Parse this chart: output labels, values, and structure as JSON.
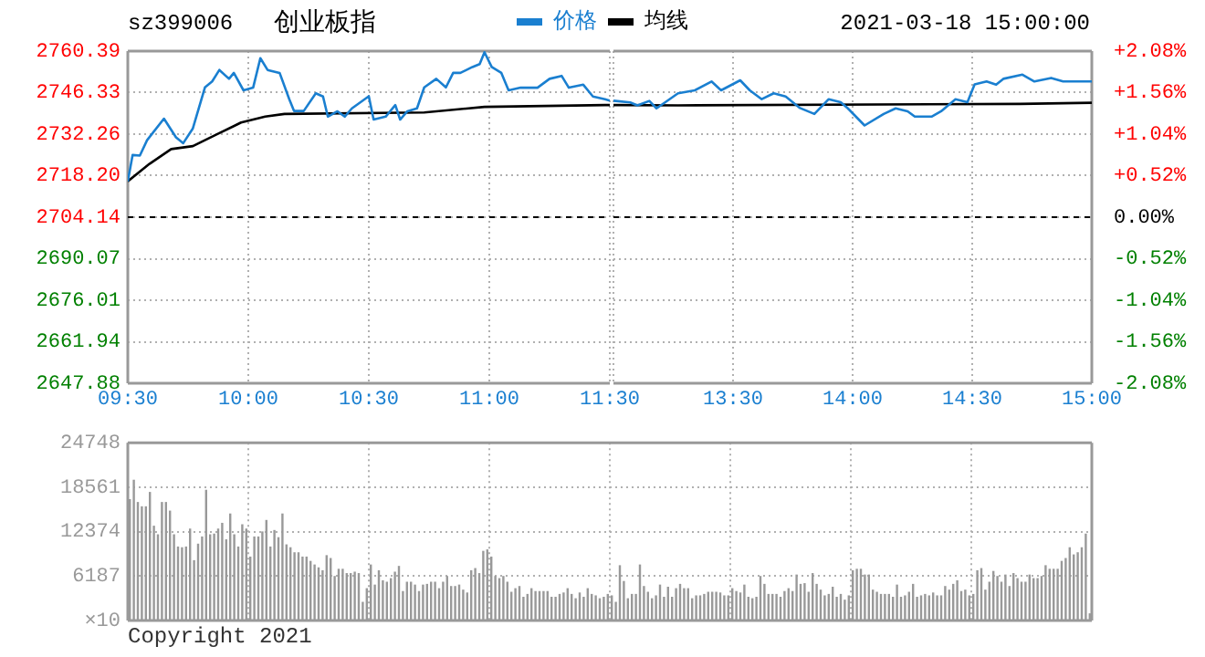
{
  "chart_data": [
    {
      "type": "line",
      "title": "创业板指",
      "subtitle": "sz399006",
      "annotations": [
        "2021-03-18 15:00:00"
      ],
      "xlim": [
        9.5,
        11.5
      ],
      "xticks": [
        {
          "value": 9.5,
          "label": "09:30"
        },
        {
          "value": 10,
          "label": "10:00"
        },
        {
          "value": 10.5,
          "label": "10:30"
        },
        {
          "value": 11,
          "label": "11:00"
        },
        {
          "value": 11.5,
          "label": "11:30"
        }
      ],
      "ylim": [
        2647.88,
        2760.39
      ],
      "yticks": [
        2647.88,
        2661.94,
        2676.01,
        2690.07,
        2704.14,
        {
          "value": 2718.2,
          "label": "2718.20"
        },
        2732.26,
        2746.33,
        2760.39
      ],
      "ref_lines": [
        {
          "axis": "y",
          "value": 2704.14,
          "line_style": "dashed",
          "color": "#000000"
        }
      ],
      "grid": true,
      "legend": "top",
      "series": [
        {
          "name": "价格",
          "color": "#1a7fd0",
          "x": [
            9.5,
            9.52,
            9.55,
            9.58,
            9.65,
            9.7,
            9.73,
            9.77,
            9.82,
            9.85,
            9.88,
            9.92,
            9.94,
            9.98,
            10.02,
            10.05,
            10.08,
            10.13,
            10.17,
            10.19,
            10.23,
            10.28,
            10.31,
            10.33,
            10.37,
            10.4,
            10.43,
            10.5,
            10.52,
            10.57,
            10.61,
            10.63,
            10.66,
            10.7,
            10.73,
            10.78,
            10.82,
            10.85,
            10.88,
            10.93,
            10.96,
            10.98,
            11.01,
            11.05,
            11.08,
            11.13,
            11.2,
            11.25,
            11.3,
            11.33,
            11.39,
            11.43,
            11.48,
            11.5
          ],
          "values": [
            2716.3,
            2725.2,
            2725,
            2730.2,
            2737.5,
            2731.2,
            2729.2,
            2734.2,
            2748.1,
            2750.1,
            2754,
            2751,
            2753,
            2747.1,
            2748,
            2758,
            2754,
            2753,
            2744.1,
            2740.1,
            2740.1,
            2746.1,
            2745,
            2738.2,
            2740,
            2738.2,
            2741,
            2745.1,
            2737.2,
            2738.2,
            2742.1,
            2737.2,
            2740,
            2741,
            2748.1,
            2751,
            2748.1,
            2753,
            2753,
            2755,
            2756,
            2760,
            2755,
            2753,
            2747.1,
            2748,
            2748,
            2751,
            2752,
            2748,
            2749,
            2745,
            2744.1,
            2743.6
          ]
        },
        {
          "name": "均线",
          "color": "#000000",
          "x": [
            9.5,
            9.59,
            9.68,
            9.77,
            9.87,
            9.97,
            10.07,
            10.15,
            10.73,
            10.98,
            11.48,
            11.5
          ],
          "values": [
            2716.3,
            2722.2,
            2727.2,
            2728.2,
            2732.2,
            2736.2,
            2738.2,
            2739.1,
            2739.6,
            2741.5,
            2742.1,
            2742.1
          ]
        }
      ]
    },
    {
      "type": "line",
      "xlim": [
        13,
        15
      ],
      "xticks": [
        {
          "value": 13,
          "label": null
        },
        {
          "value": 13.5,
          "label": "13:30"
        },
        {
          "value": 14,
          "label": "14:00"
        },
        {
          "value": 14.5,
          "label": "14:30"
        },
        {
          "value": 15,
          "label": "15:00"
        }
      ],
      "ylim": [
        2647.88,
        2760.39
      ],
      "tick_labels": "x",
      "y2lim": [
        -2.08,
        2.08
      ],
      "y2ticks": [
        {
          "value": -2.08,
          "label": "-2.08%"
        },
        {
          "value": -1.56,
          "label": "-1.56%"
        },
        {
          "value": -1.04,
          "label": "-1.04%"
        },
        {
          "value": -0.52,
          "label": "-0.52%"
        },
        {
          "value": 0,
          "label": "0.00%"
        },
        {
          "value": 0.52,
          "label": "+0.52%"
        },
        {
          "value": 1.04,
          "label": "+1.04%"
        },
        {
          "value": 1.56,
          "label": "+1.56%"
        },
        {
          "value": 2.08,
          "label": "+2.08%"
        }
      ],
      "ref_lines": [
        {
          "axis": "y",
          "value": 2704.14,
          "line_style": "dashed",
          "color": "#000000"
        }
      ],
      "grid": true,
      "series": [
        {
          "color": "#1a7fd0",
          "x": [
            13,
            13.07,
            13.1,
            13.15,
            13.18,
            13.27,
            13.34,
            13.41,
            13.45,
            13.53,
            13.57,
            13.62,
            13.67,
            13.72,
            13.78,
            13.84,
            13.9,
            13.95,
            13.98,
            14.05,
            14.13,
            14.18,
            14.23,
            14.26,
            14.33,
            14.37,
            14.43,
            14.48,
            14.51,
            14.56,
            14.6,
            14.63,
            14.71,
            14.76,
            14.83,
            14.88,
            15
          ],
          "values": [
            2743.6,
            2743,
            2742,
            2743.5,
            2741,
            2746.1,
            2747.1,
            2750.1,
            2747.1,
            2750.5,
            2747.1,
            2744.1,
            2746.1,
            2745,
            2741.1,
            2739.1,
            2744.1,
            2743.1,
            2741,
            2735.2,
            2739.1,
            2741,
            2740,
            2738.2,
            2738.2,
            2740,
            2744.1,
            2743.1,
            2749.1,
            2750.1,
            2749,
            2751,
            2752.4,
            2750.1,
            2751.3,
            2750.1,
            2750.1
          ]
        },
        {
          "color": "#000000",
          "x": [
            13,
            13.27,
            14.7,
            15
          ],
          "values": [
            2742.1,
            2742,
            2742.5,
            2742.9
          ]
        }
      ]
    },
    {
      "type": "bar",
      "color": "#999999",
      "ylim": [
        0,
        24748
      ],
      "yticks": [
        {
          "value": 0,
          "label": null
        },
        6187,
        12374,
        18561,
        24748
      ],
      "ylabel": "×10",
      "grid": true,
      "tick_labels": "y",
      "annotations": [
        "Copyright 2021"
      ],
      "categories": [
        null,
        null,
        null,
        null,
        null,
        null,
        null,
        null,
        null,
        null,
        null,
        null,
        null,
        null,
        null,
        null,
        null,
        null,
        null,
        null,
        null,
        null,
        null,
        null,
        null,
        null,
        null,
        null,
        null,
        null,
        null,
        null,
        null,
        null,
        null,
        null,
        null,
        null,
        null,
        null,
        null,
        null,
        null,
        null,
        null,
        null,
        null,
        null,
        null,
        null,
        null,
        null,
        null,
        null,
        null,
        null,
        null,
        null,
        null,
        null,
        null,
        null,
        null,
        null,
        null,
        null,
        null,
        null,
        null,
        null,
        null,
        null,
        null,
        null,
        null,
        null,
        null,
        null,
        null,
        null,
        null,
        null,
        null,
        null,
        null,
        null,
        null,
        null,
        null,
        null,
        null,
        null,
        null,
        null,
        null,
        null,
        null,
        null,
        null,
        null,
        null,
        null,
        null,
        null,
        null,
        null,
        null,
        null,
        null,
        null,
        null,
        null,
        null,
        null,
        null,
        null,
        null,
        null,
        null,
        null,
        null,
        null,
        null,
        null,
        null,
        null,
        null,
        null,
        null,
        null,
        null,
        null,
        null,
        null,
        null,
        null,
        null,
        null,
        null,
        null,
        null,
        null,
        null,
        null,
        null,
        null,
        null,
        null,
        null,
        null,
        null,
        null,
        null,
        null,
        null,
        null,
        null,
        null,
        null,
        null,
        null,
        null,
        null,
        null,
        null,
        null,
        null,
        null,
        null,
        null,
        null,
        null,
        null,
        null,
        null,
        null,
        null,
        null,
        null,
        null,
        null,
        null,
        null,
        null,
        null,
        null,
        null,
        null,
        null,
        null,
        null,
        null,
        null,
        null,
        null,
        null,
        null,
        null,
        null,
        null,
        null,
        null,
        null,
        null,
        null,
        null,
        null,
        null,
        null,
        null,
        null,
        null,
        null,
        null,
        null,
        null,
        null,
        null,
        null,
        null,
        null,
        null,
        null,
        null,
        null,
        null,
        null,
        null,
        null,
        null,
        null,
        null,
        null,
        null,
        null,
        null,
        null,
        null,
        null,
        null
      ],
      "values": [
        16900,
        19600,
        16500,
        15900,
        15900,
        17900,
        13200,
        12000,
        16500,
        16500,
        15300,
        12000,
        10300,
        10200,
        10300,
        12800,
        8400,
        10700,
        11700,
        18200,
        12000,
        12100,
        12800,
        13600,
        11300,
        14900,
        12000,
        10300,
        13400,
        12800,
        8900,
        11700,
        11700,
        12400,
        14000,
        10300,
        12600,
        11600,
        14900,
        10600,
        10200,
        9500,
        9500,
        8900,
        8900,
        8300,
        7800,
        7400,
        7000,
        9100,
        8700,
        6200,
        7200,
        7200,
        6600,
        6600,
        6800,
        6600,
        2600,
        4500,
        7800,
        5000,
        7000,
        5600,
        5400,
        5900,
        6800,
        7600,
        4100,
        5400,
        5400,
        5000,
        4100,
        5000,
        5100,
        5400,
        5400,
        4500,
        5400,
        6200,
        4800,
        4800,
        5000,
        4300,
        3900,
        7000,
        7300,
        6600,
        9700,
        9900,
        8900,
        6200,
        5900,
        6200,
        5400,
        4000,
        4500,
        4800,
        3300,
        3700,
        4500,
        4100,
        4100,
        4100,
        4100,
        3300,
        3300,
        3700,
        3900,
        4500,
        3700,
        3100,
        3900,
        3300,
        4500,
        3700,
        3500,
        3100,
        3300,
        3700,
        3500,
        2600,
        7700,
        5500,
        3100,
        3700,
        3700,
        7800,
        4800,
        4000,
        3100,
        3500,
        5000,
        3300,
        4700,
        3300,
        4500,
        5100,
        4500,
        4500,
        3100,
        3500,
        3500,
        3700,
        4000,
        4000,
        4000,
        3900,
        3500,
        3500,
        4500,
        4100,
        3900,
        5000,
        3300,
        3100,
        3300,
        6200,
        5100,
        3700,
        3700,
        3700,
        3300,
        4100,
        4500,
        4100,
        6400,
        5100,
        5200,
        4000,
        6600,
        5100,
        4300,
        3500,
        3700,
        4700,
        3300,
        3700,
        2900,
        3500,
        7000,
        7200,
        7200,
        6400,
        6400,
        4300,
        4000,
        3700,
        3700,
        3700,
        3300,
        5000,
        3300,
        3500,
        4000,
        5100,
        3300,
        3500,
        3700,
        3500,
        3900,
        3500,
        3500,
        4800,
        4300,
        5100,
        5600,
        4100,
        4300,
        3500,
        3700,
        7000,
        7300,
        4300,
        5400,
        6900,
        6200,
        5400,
        6400,
        4800,
        6600,
        5900,
        5400,
        5400,
        6400,
        5900,
        5900,
        6200,
        7700,
        7200,
        7200,
        7200,
        8300,
        8700,
        10200,
        9200,
        9500,
        10200,
        12100,
        1000
      ]
    }
  ]
}
